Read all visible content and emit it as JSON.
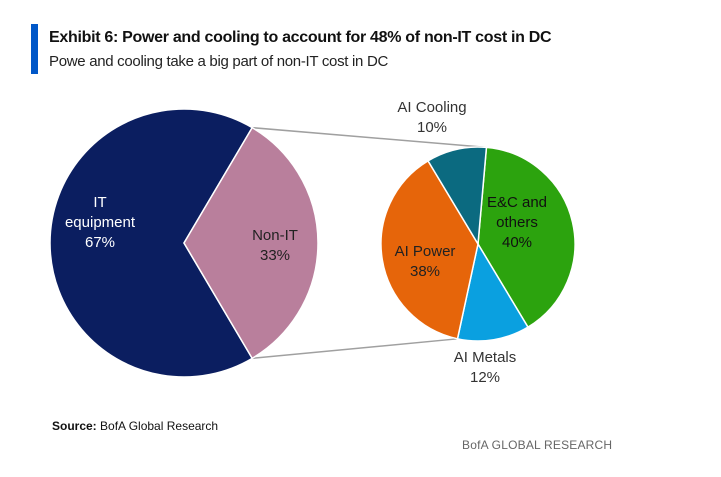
{
  "header": {
    "title": "Exhibit 6: Power and cooling to account for 48% of non-IT cost in DC",
    "subtitle": "Powe and cooling take a big part of non-IT cost in DC",
    "accent": "#0057c8"
  },
  "chart_data": {
    "type": "pie",
    "title": "Exhibit 6: Power and cooling to account for 48% of non-IT cost in DC",
    "subtitle": "Powe and cooling take a big part of non-IT cost in DC",
    "pies": [
      {
        "slices": [
          {
            "label": "IT equipment",
            "value": 67,
            "text": [
              "IT",
              "equipment",
              "67%"
            ],
            "color": "#0b1e60",
            "text_color": "#ffffff"
          },
          {
            "label": "Non-IT",
            "value": 33,
            "text": [
              "Non-IT",
              "33%"
            ],
            "color": "#b97f9c",
            "text_color": "#222222"
          }
        ]
      },
      {
        "breakdown_of": "Non-IT",
        "slices": [
          {
            "label": "E&C and others",
            "value": 40,
            "text": [
              "E&C and",
              "others",
              "40%"
            ],
            "color": "#2ca30e",
            "text_color": "#111111"
          },
          {
            "label": "AI Metals",
            "value": 12,
            "text": [
              "AI Metals",
              "12%"
            ],
            "color": "#0aa0e0",
            "text_color": "#333333"
          },
          {
            "label": "AI Power",
            "value": 38,
            "text": [
              "AI Power",
              "38%"
            ],
            "color": "#e6650a",
            "text_color": "#222222"
          },
          {
            "label": "AI Cooling",
            "value": 10,
            "text": [
              "AI Cooling",
              "10%"
            ],
            "color": "#0b6a80",
            "text_color": "#333333"
          }
        ]
      }
    ]
  },
  "footer": {
    "source_label": "Source:",
    "source_text": " BofA Global Research",
    "brand": "BofA GLOBAL RESEARCH"
  }
}
